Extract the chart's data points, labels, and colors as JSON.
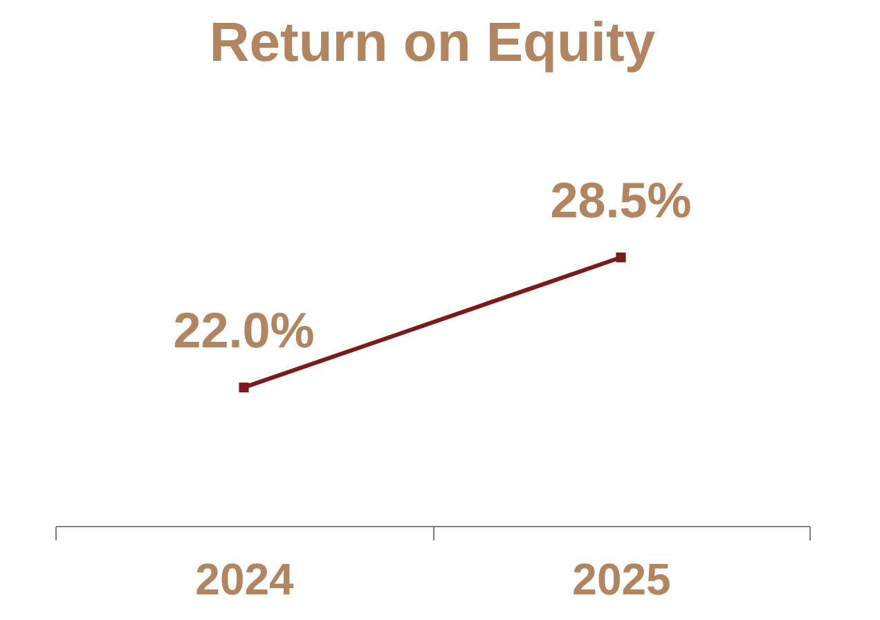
{
  "chart_data": {
    "type": "line",
    "title": "Return on Equity",
    "categories": [
      "2024",
      "2025"
    ],
    "series": [
      {
        "color": "#7b1a1a",
        "values": [
          22.0,
          28.5
        ],
        "value_labels": [
          "22.0%",
          "28.5%"
        ]
      }
    ],
    "marker": "square",
    "line_style": "solid",
    "grid": false
  }
}
